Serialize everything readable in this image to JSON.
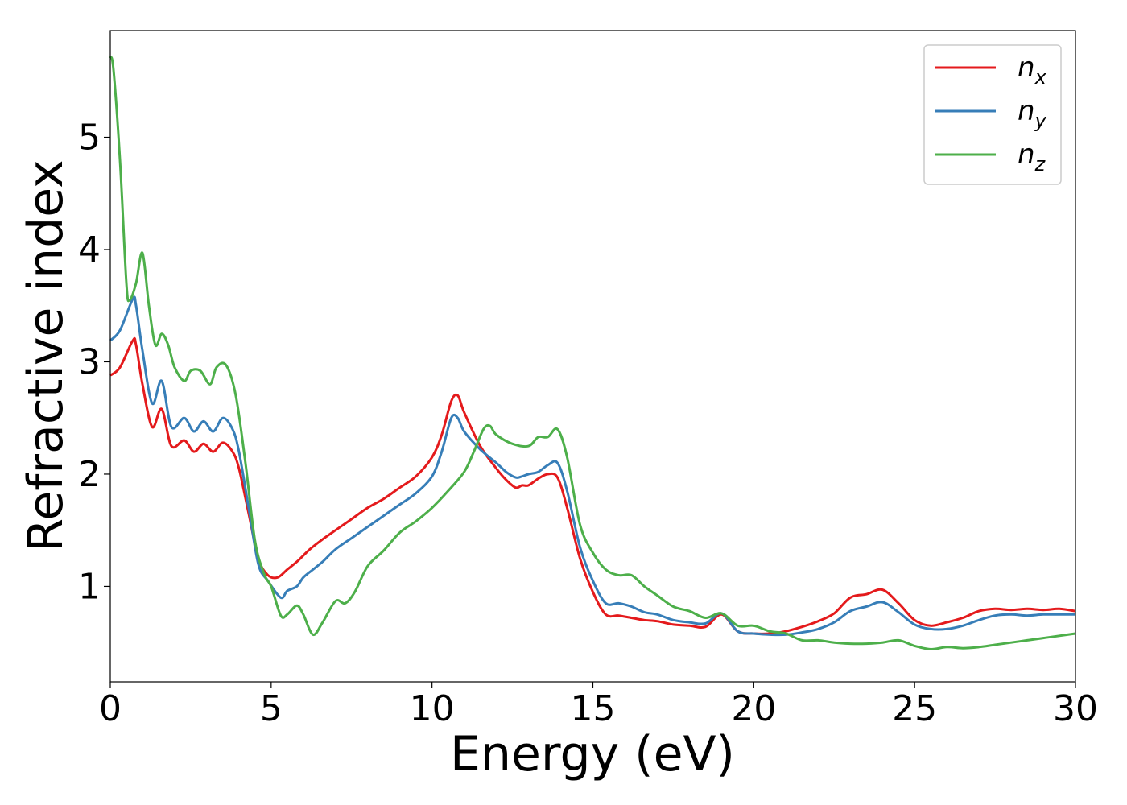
{
  "chart_data": {
    "type": "line",
    "title": "",
    "xlabel": "Energy (eV)",
    "ylabel": "Refractive index",
    "xlim": [
      0,
      30
    ],
    "ylim": [
      0.15,
      5.95
    ],
    "xticks": [
      0,
      5,
      10,
      15,
      20,
      25,
      30
    ],
    "yticks": [
      1,
      2,
      3,
      4,
      5
    ],
    "grid": false,
    "legend_position": "top-right",
    "series": [
      {
        "name": "n_x",
        "label_base": "n",
        "label_sub": "x",
        "color": "#e41a1c",
        "x": [
          0,
          0.3,
          0.7,
          0.8,
          1.0,
          1.3,
          1.6,
          1.9,
          2.3,
          2.6,
          2.9,
          3.2,
          3.5,
          3.8,
          4.0,
          4.3,
          4.6,
          4.9,
          5.2,
          5.5,
          5.8,
          6.2,
          6.6,
          7.0,
          7.5,
          8.0,
          8.5,
          9.0,
          9.5,
          10.0,
          10.3,
          10.6,
          10.8,
          11.0,
          11.5,
          12.0,
          12.3,
          12.6,
          12.8,
          13.0,
          13.3,
          13.6,
          13.9,
          14.2,
          14.6,
          15.0,
          15.4,
          15.8,
          16.2,
          16.6,
          17.0,
          17.5,
          18.0,
          18.5,
          19.0,
          19.5,
          20.0,
          20.5,
          21.0,
          21.5,
          22.0,
          22.5,
          23.0,
          23.5,
          24.0,
          24.5,
          25.0,
          25.5,
          26.0,
          26.5,
          27.0,
          27.5,
          28.0,
          28.5,
          29.0,
          29.5,
          30.0
        ],
        "y": [
          2.88,
          2.95,
          3.19,
          3.15,
          2.8,
          2.42,
          2.58,
          2.25,
          2.3,
          2.2,
          2.27,
          2.2,
          2.28,
          2.2,
          2.05,
          1.65,
          1.25,
          1.1,
          1.08,
          1.15,
          1.22,
          1.33,
          1.42,
          1.5,
          1.6,
          1.7,
          1.78,
          1.88,
          1.98,
          2.15,
          2.35,
          2.65,
          2.7,
          2.55,
          2.25,
          2.05,
          1.95,
          1.88,
          1.9,
          1.9,
          1.96,
          2.0,
          1.97,
          1.7,
          1.25,
          0.95,
          0.75,
          0.74,
          0.72,
          0.7,
          0.69,
          0.66,
          0.65,
          0.64,
          0.75,
          0.6,
          0.58,
          0.58,
          0.6,
          0.64,
          0.69,
          0.76,
          0.9,
          0.93,
          0.97,
          0.85,
          0.7,
          0.65,
          0.68,
          0.72,
          0.78,
          0.8,
          0.79,
          0.8,
          0.79,
          0.8,
          0.78
        ]
      },
      {
        "name": "n_y",
        "label_base": "n",
        "label_sub": "y",
        "color": "#377eb8",
        "x": [
          0,
          0.3,
          0.7,
          0.8,
          1.0,
          1.3,
          1.6,
          1.9,
          2.3,
          2.6,
          2.9,
          3.2,
          3.5,
          3.8,
          4.0,
          4.3,
          4.6,
          4.9,
          5.3,
          5.5,
          5.8,
          6.0,
          6.3,
          6.6,
          7.0,
          7.5,
          8.0,
          8.5,
          9.0,
          9.5,
          10.0,
          10.3,
          10.6,
          10.8,
          11.0,
          11.5,
          12.0,
          12.3,
          12.6,
          12.8,
          13.0,
          13.3,
          13.6,
          13.9,
          14.2,
          14.6,
          15.0,
          15.4,
          15.8,
          16.2,
          16.6,
          17.0,
          17.5,
          18.0,
          18.5,
          19.0,
          19.5,
          20.0,
          20.5,
          21.0,
          21.5,
          22.0,
          22.5,
          23.0,
          23.5,
          24.0,
          24.5,
          25.0,
          25.5,
          26.0,
          26.5,
          27.0,
          27.5,
          28.0,
          28.5,
          29.0,
          29.5,
          30.0
        ],
        "y": [
          3.19,
          3.28,
          3.56,
          3.5,
          3.1,
          2.63,
          2.83,
          2.42,
          2.5,
          2.38,
          2.47,
          2.38,
          2.5,
          2.4,
          2.2,
          1.7,
          1.2,
          1.05,
          0.9,
          0.96,
          1.0,
          1.08,
          1.15,
          1.22,
          1.33,
          1.43,
          1.53,
          1.63,
          1.73,
          1.83,
          1.98,
          2.2,
          2.5,
          2.5,
          2.38,
          2.22,
          2.1,
          2.02,
          1.97,
          1.98,
          2.0,
          2.02,
          2.08,
          2.1,
          1.85,
          1.35,
          1.05,
          0.85,
          0.85,
          0.82,
          0.77,
          0.75,
          0.7,
          0.68,
          0.67,
          0.76,
          0.6,
          0.58,
          0.57,
          0.57,
          0.59,
          0.62,
          0.68,
          0.78,
          0.82,
          0.86,
          0.77,
          0.66,
          0.62,
          0.62,
          0.65,
          0.7,
          0.74,
          0.75,
          0.74,
          0.75,
          0.75,
          0.75
        ]
      },
      {
        "name": "n_z",
        "label_base": "n",
        "label_sub": "z",
        "color": "#4daf4a",
        "x": [
          0,
          0.1,
          0.3,
          0.5,
          0.6,
          0.8,
          1.0,
          1.2,
          1.4,
          1.6,
          1.8,
          2.0,
          2.3,
          2.5,
          2.8,
          3.1,
          3.3,
          3.6,
          3.9,
          4.2,
          4.5,
          4.8,
          5.0,
          5.3,
          5.5,
          5.8,
          6.0,
          6.3,
          6.6,
          7.0,
          7.3,
          7.6,
          8.0,
          8.5,
          9.0,
          9.5,
          10.0,
          10.5,
          11.0,
          11.3,
          11.6,
          11.8,
          12.0,
          12.5,
          13.0,
          13.3,
          13.6,
          13.9,
          14.2,
          14.6,
          15.0,
          15.4,
          15.8,
          16.2,
          16.6,
          17.0,
          17.5,
          18.0,
          18.5,
          19.0,
          19.5,
          20.0,
          20.5,
          21.0,
          21.5,
          22.0,
          22.5,
          23.0,
          23.5,
          24.0,
          24.5,
          25.0,
          25.5,
          26.0,
          26.5,
          27.0,
          27.5,
          28.0,
          28.5,
          29.0,
          29.5,
          30.0
        ],
        "y": [
          5.72,
          5.6,
          4.8,
          3.7,
          3.55,
          3.7,
          3.97,
          3.5,
          3.15,
          3.25,
          3.15,
          2.95,
          2.83,
          2.92,
          2.92,
          2.8,
          2.95,
          2.97,
          2.7,
          2.1,
          1.4,
          1.1,
          1.0,
          0.74,
          0.75,
          0.83,
          0.75,
          0.57,
          0.68,
          0.87,
          0.85,
          0.95,
          1.18,
          1.32,
          1.48,
          1.58,
          1.7,
          1.85,
          2.02,
          2.2,
          2.4,
          2.43,
          2.35,
          2.27,
          2.25,
          2.33,
          2.33,
          2.4,
          2.15,
          1.55,
          1.3,
          1.15,
          1.1,
          1.1,
          1.0,
          0.92,
          0.82,
          0.78,
          0.72,
          0.76,
          0.65,
          0.65,
          0.6,
          0.58,
          0.52,
          0.52,
          0.5,
          0.49,
          0.49,
          0.5,
          0.52,
          0.47,
          0.44,
          0.46,
          0.45,
          0.46,
          0.48,
          0.5,
          0.52,
          0.54,
          0.56,
          0.58
        ]
      }
    ]
  }
}
